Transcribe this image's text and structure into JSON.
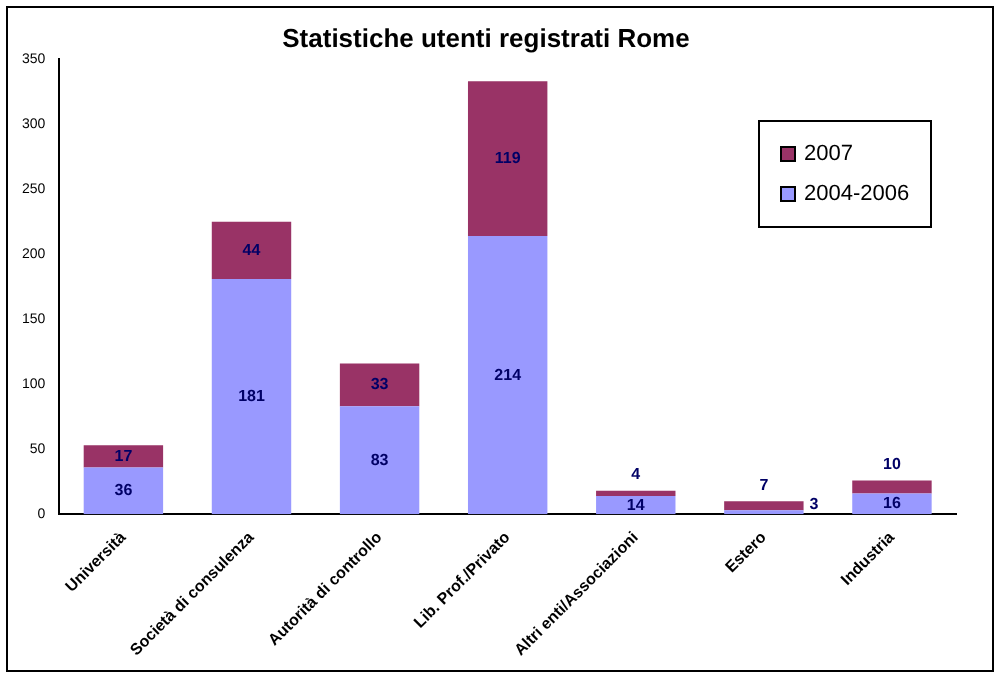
{
  "chart_data": {
    "type": "bar",
    "title": "Statistiche utenti registrati Rome",
    "categories": [
      "Università",
      "Società di consulenza",
      "Autorità di controllo",
      "Lib. Prof./Privato",
      "Altri enti/Associazioni",
      "Estero",
      "Industria"
    ],
    "series": [
      {
        "name": "2004-2006",
        "color": "#9999ff",
        "values": [
          36,
          181,
          83,
          214,
          14,
          3,
          16
        ]
      },
      {
        "name": "2007",
        "color": "#993366",
        "values": [
          17,
          44,
          33,
          119,
          4,
          7,
          10
        ]
      }
    ],
    "stacked": true,
    "ylim": [
      0,
      350
    ],
    "yticks": [
      0,
      50,
      100,
      150,
      200,
      250,
      300,
      350
    ],
    "grid": false,
    "legend": "top right",
    "data_labels": true
  }
}
